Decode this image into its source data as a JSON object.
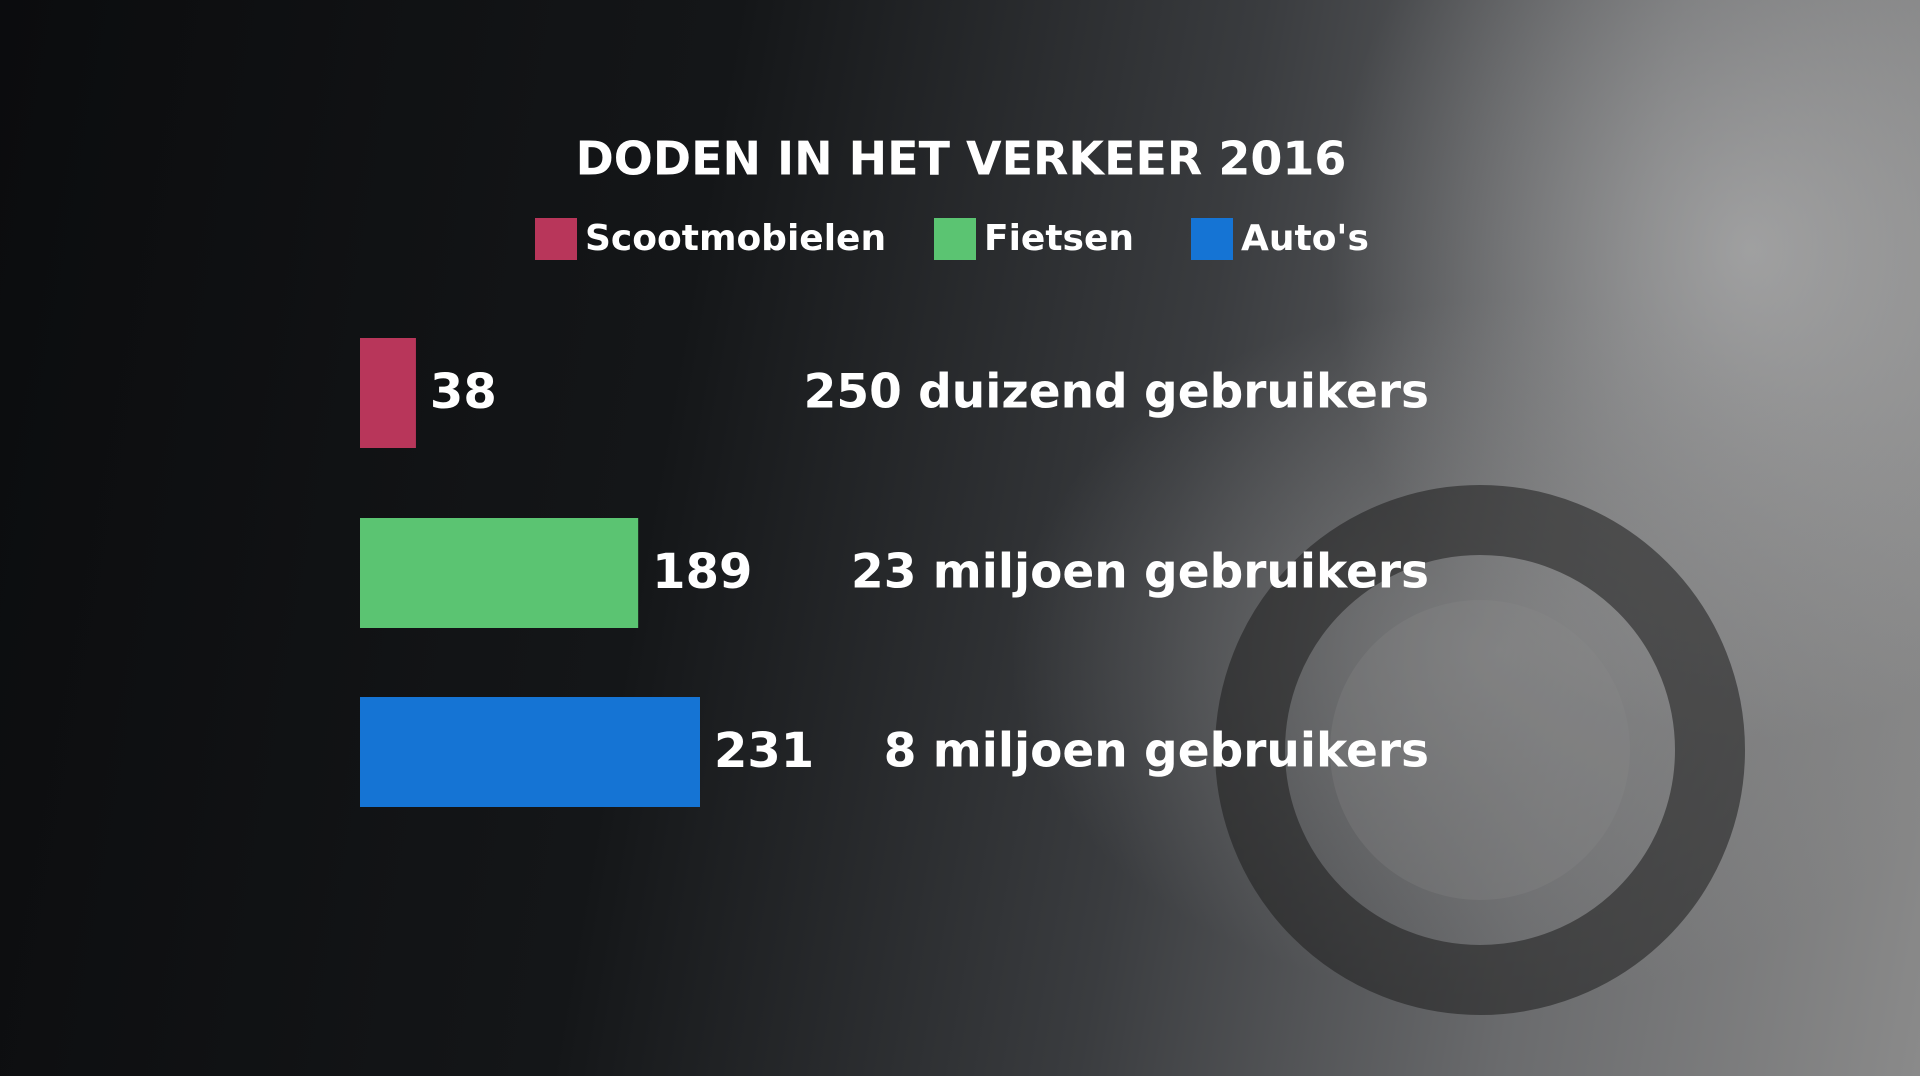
{
  "chart_data": {
    "type": "bar",
    "orientation": "horizontal",
    "title": "DODEN IN HET VERKEER 2016",
    "series": [
      {
        "name": "Scootmobielen",
        "color": "#b8365a",
        "values": [
          38
        ]
      },
      {
        "name": "Fietsen",
        "color": "#5bc472",
        "values": [
          189
        ]
      },
      {
        "name": "Auto's",
        "color": "#1574d4",
        "values": [
          231
        ]
      }
    ],
    "annotations": [
      "250 duizend gebruikers",
      "23 miljoen gebruikers",
      "8 miljoen gebruikers"
    ]
  }
}
